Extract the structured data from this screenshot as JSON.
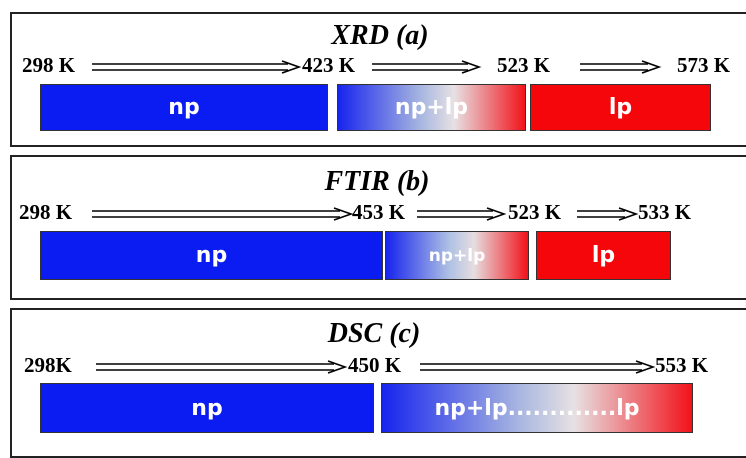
{
  "panels": {
    "xrd": {
      "title": "XRD (a)",
      "temps": [
        "298 K",
        "423 K",
        "523 K",
        "573 K"
      ],
      "phases": [
        "np",
        "np+lp",
        "lp"
      ]
    },
    "ftir": {
      "title": "FTIR (b)",
      "temps": [
        "298 K",
        "453 K",
        "523 K",
        "533 K"
      ],
      "phases": [
        "np",
        "np+lp",
        "lp"
      ]
    },
    "dsc": {
      "title": "DSC (c)",
      "temps": [
        "298K",
        "450 K",
        "553 K"
      ],
      "phases": [
        "np",
        "np+lp.............lp"
      ]
    }
  },
  "colors": {
    "np": "#0a1cf2",
    "lp": "#f5060b",
    "border": "#222222"
  },
  "icons": [
    "double-arrow-right-icon"
  ]
}
